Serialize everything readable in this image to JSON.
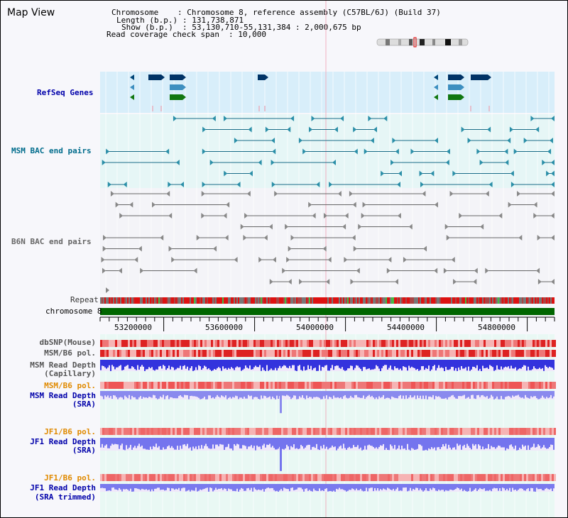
{
  "title": "Map View",
  "header": {
    "chromosome_label": "Chromosome",
    "chromosome_value": ": Chromosome 8, reference assembly (C57BL/6J) (Build 37)",
    "length_label": "Length (b.p.)",
    "length_value": ": 131,738,871",
    "show_label": "Show (b.p.)",
    "show_value": ": 53,130,710-55,131,384 : 2,000,675 bp",
    "coverage_label": "Read coverage check span",
    "coverage_value": ": 10,000"
  },
  "tracks": {
    "refseq": "RefSeq Genes",
    "msm_bac": "MSM BAC end pairs",
    "b6n_bac": "B6N BAC end pairs",
    "repeat": "Repeat",
    "chromosome": "chromosome 8",
    "dbsnp": "dbSNP(Mouse)",
    "msm_b6_pol_1": "MSM/B6 pol.",
    "msm_depth_cap_1": "MSM Read Depth",
    "msm_depth_cap_2": "(Capillary)",
    "msm_b6_pol_2": "MSM/B6 pol.",
    "msm_depth_sra_1": "MSM Read Depth",
    "msm_depth_sra_2": "(SRA)",
    "jf1_b6_pol_1": "JF1/B6 pol.",
    "jf1_depth_sra_1": "JF1 Read Depth",
    "jf1_depth_sra_2": "(SRA)",
    "jf1_b6_pol_2": "JF1/B6 pol.",
    "jf1_depth_trim_1": "JF1 Read Depth",
    "jf1_depth_trim_2": "(SRA trimmed)"
  },
  "ruler": {
    "ticks": [
      "53200000",
      "53600000",
      "54000000",
      "54400000",
      "54800000"
    ]
  },
  "colors": {
    "label_blue": "#0000aa",
    "label_teal": "#006c8c",
    "label_gray": "#666666",
    "label_orange": "#e08a00",
    "chromosome_green": "#006600",
    "refseq_bg": "#d8eefa",
    "bac_bg": "#e6f6f6",
    "depth_blue": "#3333dd",
    "depth_light": "#8a8aee",
    "pol_red": "#dd2222"
  }
}
